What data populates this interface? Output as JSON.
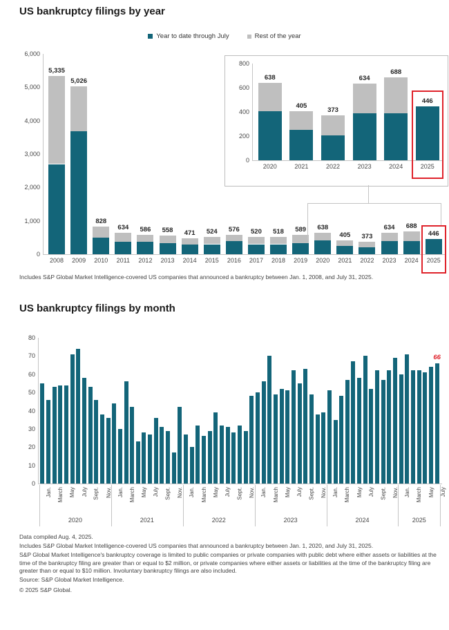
{
  "yearly": {
    "title": "US bankruptcy filings by year",
    "footnote": "Includes S&P Global Market Intelligence-covered US companies that announced a bankruptcy between Jan. 1, 2008, and July 31, 2025.",
    "legend": [
      {
        "label": "Year to date through July",
        "color": "#136579"
      },
      {
        "label": "Rest of the year",
        "color": "#bfbfbf"
      }
    ]
  },
  "monthly": {
    "title": "US bankruptcy filings by month",
    "footnotes": [
      "Data compiled Aug. 4, 2025.",
      "Includes S&P Global Market Intelligence-covered US companies that announced a bankruptcy between Jan. 1, 2020, and July 31, 2025.",
      "S&P Global Market Intelligence's bankruptcy coverage is limited to public companies or private companies with public debt where either assets or liabilities at the time of the bankruptcy filing are greater than or equal to $2 million, or private companies where either assets or liabilities at the time of the bankruptcy filing are greater than or equal to $10 million. Involuntary bankruptcy filings are also included.",
      "Source: S&P Global Market Intelligence.",
      "© 2025 S&P Global."
    ]
  },
  "chart_data": [
    {
      "id": "yearly",
      "type": "bar",
      "stacked": true,
      "title": "US bankruptcy filings by year",
      "legend_position": "top",
      "categories": [
        "2008",
        "2009",
        "2010",
        "2011",
        "2012",
        "2013",
        "2014",
        "2015",
        "2016",
        "2017",
        "2018",
        "2019",
        "2020",
        "2021",
        "2022",
        "2023",
        "2024",
        "2025"
      ],
      "series": [
        {
          "name": "Year to date through July",
          "color": "#136579",
          "values": [
            2700,
            3680,
            490,
            370,
            380,
            330,
            280,
            300,
            385,
            300,
            300,
            330,
            407,
            250,
            205,
            390,
            386,
            446
          ]
        },
        {
          "name": "Rest of the year",
          "color": "#bfbfbf",
          "values": [
            2635,
            1346,
            338,
            264,
            206,
            228,
            191,
            224,
            191,
            220,
            218,
            259,
            231,
            155,
            168,
            244,
            302,
            0
          ]
        }
      ],
      "totals": [
        5335,
        5026,
        828,
        634,
        586,
        558,
        471,
        524,
        576,
        520,
        518,
        589,
        638,
        405,
        373,
        634,
        688,
        446
      ],
      "total_labels": [
        "5,335",
        "5,026",
        "828",
        "634",
        "586",
        "558",
        "471",
        "524",
        "576",
        "520",
        "518",
        "589",
        "638",
        "405",
        "373",
        "634",
        "688",
        "446"
      ],
      "ylim": [
        0,
        6000
      ],
      "ytick_labels": [
        "6,000",
        "5,000",
        "4,000",
        "3,000",
        "2,000",
        "1,000",
        "0"
      ],
      "highlight": "2025"
    },
    {
      "id": "inset-2020-2025",
      "type": "bar",
      "stacked": true,
      "title": "2020-2025 detail",
      "categories": [
        "2020",
        "2021",
        "2022",
        "2023",
        "2024",
        "2025"
      ],
      "series": [
        {
          "name": "Year to date through July",
          "color": "#136579",
          "values": [
            407,
            250,
            205,
            390,
            386,
            446
          ]
        },
        {
          "name": "Rest of the year",
          "color": "#bfbfbf",
          "values": [
            231,
            155,
            168,
            244,
            302,
            0
          ]
        }
      ],
      "totals": [
        638,
        405,
        373,
        634,
        688,
        446
      ],
      "total_labels": [
        "638",
        "405",
        "373",
        "634",
        "688",
        "446"
      ],
      "ylim": [
        0,
        800
      ],
      "ytick_labels": [
        "800",
        "600",
        "400",
        "200",
        "0"
      ],
      "highlight": "2025"
    },
    {
      "id": "monthly",
      "type": "bar",
      "title": "US bankruptcy filings by month",
      "color": "#136579",
      "ylim": [
        0,
        80
      ],
      "ytick_labels": [
        "80",
        "70",
        "60",
        "50",
        "40",
        "30",
        "20",
        "10",
        "0"
      ],
      "month_tick_labels": [
        "Jan.",
        "March",
        "May",
        "July",
        "Sept.",
        "Nov."
      ],
      "years": [
        {
          "label": "2020",
          "values": [
            55,
            46,
            53,
            54,
            54,
            71,
            74,
            58,
            53,
            46,
            38,
            36
          ]
        },
        {
          "label": "2021",
          "values": [
            44,
            30,
            56,
            42,
            23,
            28,
            27,
            36,
            31,
            29,
            17,
            42
          ]
        },
        {
          "label": "2022",
          "values": [
            27,
            20,
            32,
            26,
            29,
            39,
            32,
            31,
            28,
            32,
            29,
            48
          ]
        },
        {
          "label": "2023",
          "values": [
            50,
            56,
            70,
            49,
            52,
            51,
            62,
            55,
            63,
            49,
            38,
            39
          ]
        },
        {
          "label": "2024",
          "values": [
            51,
            35,
            48,
            57,
            67,
            58,
            70,
            52,
            62,
            57,
            62,
            69
          ]
        },
        {
          "label": "2025",
          "values": [
            60,
            71,
            62,
            62,
            61,
            64,
            66
          ]
        }
      ],
      "annotation": {
        "text": "66",
        "color": "#df222a",
        "position": "last-bar"
      }
    }
  ]
}
